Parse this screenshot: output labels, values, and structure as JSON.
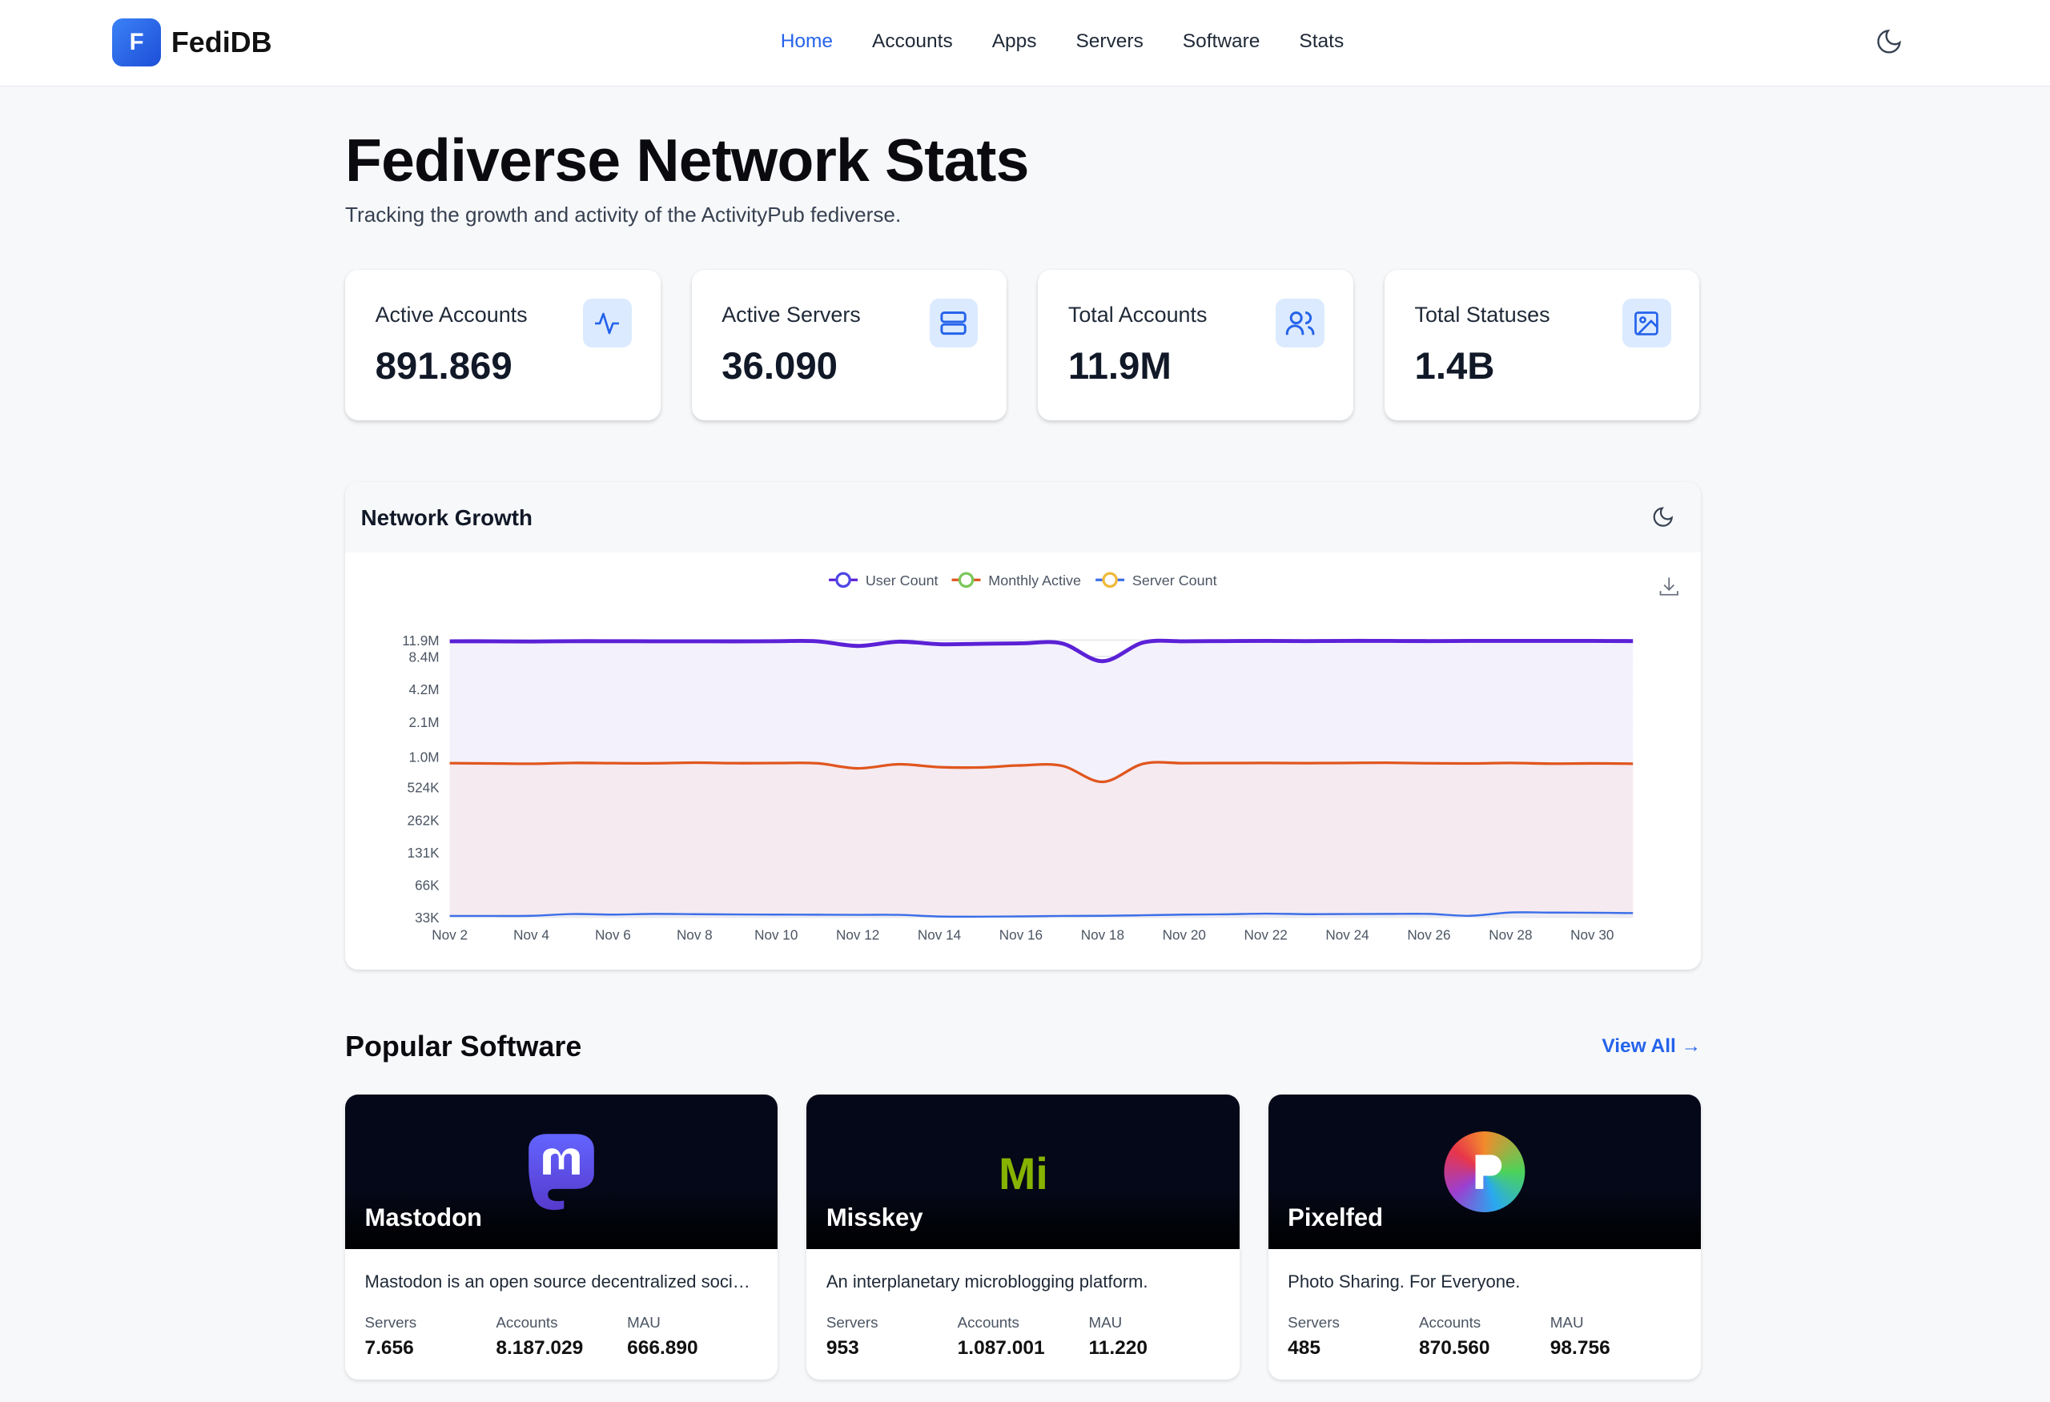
{
  "brand": {
    "logo_letter": "F",
    "name": "FediDB"
  },
  "nav": [
    {
      "label": "Home",
      "active": true
    },
    {
      "label": "Accounts"
    },
    {
      "label": "Apps"
    },
    {
      "label": "Servers"
    },
    {
      "label": "Software"
    },
    {
      "label": "Stats"
    }
  ],
  "page": {
    "title": "Fediverse Network Stats",
    "subtitle": "Tracking the growth and activity of the ActivityPub fediverse."
  },
  "stats": [
    {
      "label": "Active Accounts",
      "value": "891.869",
      "icon": "activity-icon"
    },
    {
      "label": "Active Servers",
      "value": "36.090",
      "icon": "server-icon"
    },
    {
      "label": "Total Accounts",
      "value": "11.9M",
      "icon": "users-icon"
    },
    {
      "label": "Total Statuses",
      "value": "1.4B",
      "icon": "image-icon"
    }
  ],
  "chart_card": {
    "title": "Network Growth"
  },
  "chart_data": {
    "type": "line",
    "scale": "log",
    "x": [
      "Nov 2",
      "Nov 3",
      "Nov 4",
      "Nov 5",
      "Nov 6",
      "Nov 7",
      "Nov 8",
      "Nov 9",
      "Nov 10",
      "Nov 11",
      "Nov 12",
      "Nov 13",
      "Nov 14",
      "Nov 15",
      "Nov 16",
      "Nov 17",
      "Nov 18",
      "Nov 19",
      "Nov 20",
      "Nov 21",
      "Nov 22",
      "Nov 23",
      "Nov 24",
      "Nov 25",
      "Nov 26",
      "Nov 27",
      "Nov 28",
      "Nov 29",
      "Nov 30",
      "Dec 1"
    ],
    "x_ticks": [
      "Nov 2",
      "Nov 4",
      "Nov 6",
      "Nov 8",
      "Nov 10",
      "Nov 12",
      "Nov 14",
      "Nov 16",
      "Nov 18",
      "Nov 20",
      "Nov 22",
      "Nov 24",
      "Nov 26",
      "Nov 28",
      "Nov 30"
    ],
    "y_ticks": [
      {
        "v": 33000,
        "label": "33K"
      },
      {
        "v": 66000,
        "label": "66K"
      },
      {
        "v": 131000,
        "label": "131K"
      },
      {
        "v": 262000,
        "label": "262K"
      },
      {
        "v": 524000,
        "label": "524K"
      },
      {
        "v": 1000000,
        "label": "1.0M"
      },
      {
        "v": 2100000,
        "label": "2.1M"
      },
      {
        "v": 4200000,
        "label": "4.2M"
      },
      {
        "v": 8400000,
        "label": "8.4M"
      },
      {
        "v": 11900000,
        "label": "11.9M"
      }
    ],
    "ylim": [
      33000,
      11900000
    ],
    "grid": true,
    "legend": "top-center",
    "series": [
      {
        "name": "User Count",
        "color": "#5b21d6",
        "fill": "#f3f1fc",
        "marker": "#4f46e5",
        "values": [
          11600000,
          11600000,
          11550000,
          11620000,
          11620000,
          11600000,
          11600000,
          11580000,
          11620000,
          11600000,
          10500000,
          11500000,
          10900000,
          11000000,
          11100000,
          11100000,
          7600000,
          11300000,
          11600000,
          11650000,
          11680000,
          11650000,
          11700000,
          11680000,
          11650000,
          11680000,
          11700000,
          11680000,
          11680000,
          11650000
        ]
      },
      {
        "name": "Monthly Active",
        "color": "#e0561e",
        "fill": "#f5eaf0",
        "marker": "#7cc85a",
        "values": [
          870000,
          865000,
          860000,
          875000,
          870000,
          868000,
          880000,
          870000,
          872000,
          868000,
          780000,
          850000,
          800000,
          795000,
          830000,
          825000,
          585000,
          860000,
          870000,
          872000,
          874000,
          870000,
          875000,
          878000,
          868000,
          865000,
          874000,
          862000,
          866000,
          860000
        ]
      },
      {
        "name": "Server Count",
        "color": "#3b6fe8",
        "fill": "#ecebf3",
        "marker": "#f0b93a",
        "values": [
          33900,
          33900,
          34000,
          35300,
          34900,
          35400,
          35200,
          35000,
          34900,
          34800,
          34700,
          34700,
          33500,
          33400,
          33600,
          33900,
          34000,
          34400,
          34900,
          35100,
          35600,
          35200,
          35300,
          35400,
          35400,
          34000,
          36500,
          36400,
          36300,
          36000
        ]
      }
    ]
  },
  "popular": {
    "title": "Popular Software",
    "view_all": "View All →",
    "items": [
      {
        "name": "Mastodon",
        "desc": "Mastodon is an open source decentralized social network",
        "servers": "7.656",
        "accounts": "8.187.029",
        "mau": "666.890"
      },
      {
        "name": "Misskey",
        "desc": "An interplanetary microblogging platform.",
        "servers": "953",
        "accounts": "1.087.001",
        "mau": "11.220"
      },
      {
        "name": "Pixelfed",
        "desc": "Photo Sharing. For Everyone.",
        "servers": "485",
        "accounts": "870.560",
        "mau": "98.756"
      }
    ],
    "labels": {
      "servers": "Servers",
      "accounts": "Accounts",
      "mau": "MAU"
    },
    "logo_text": {
      "misskey": "Mi"
    }
  }
}
